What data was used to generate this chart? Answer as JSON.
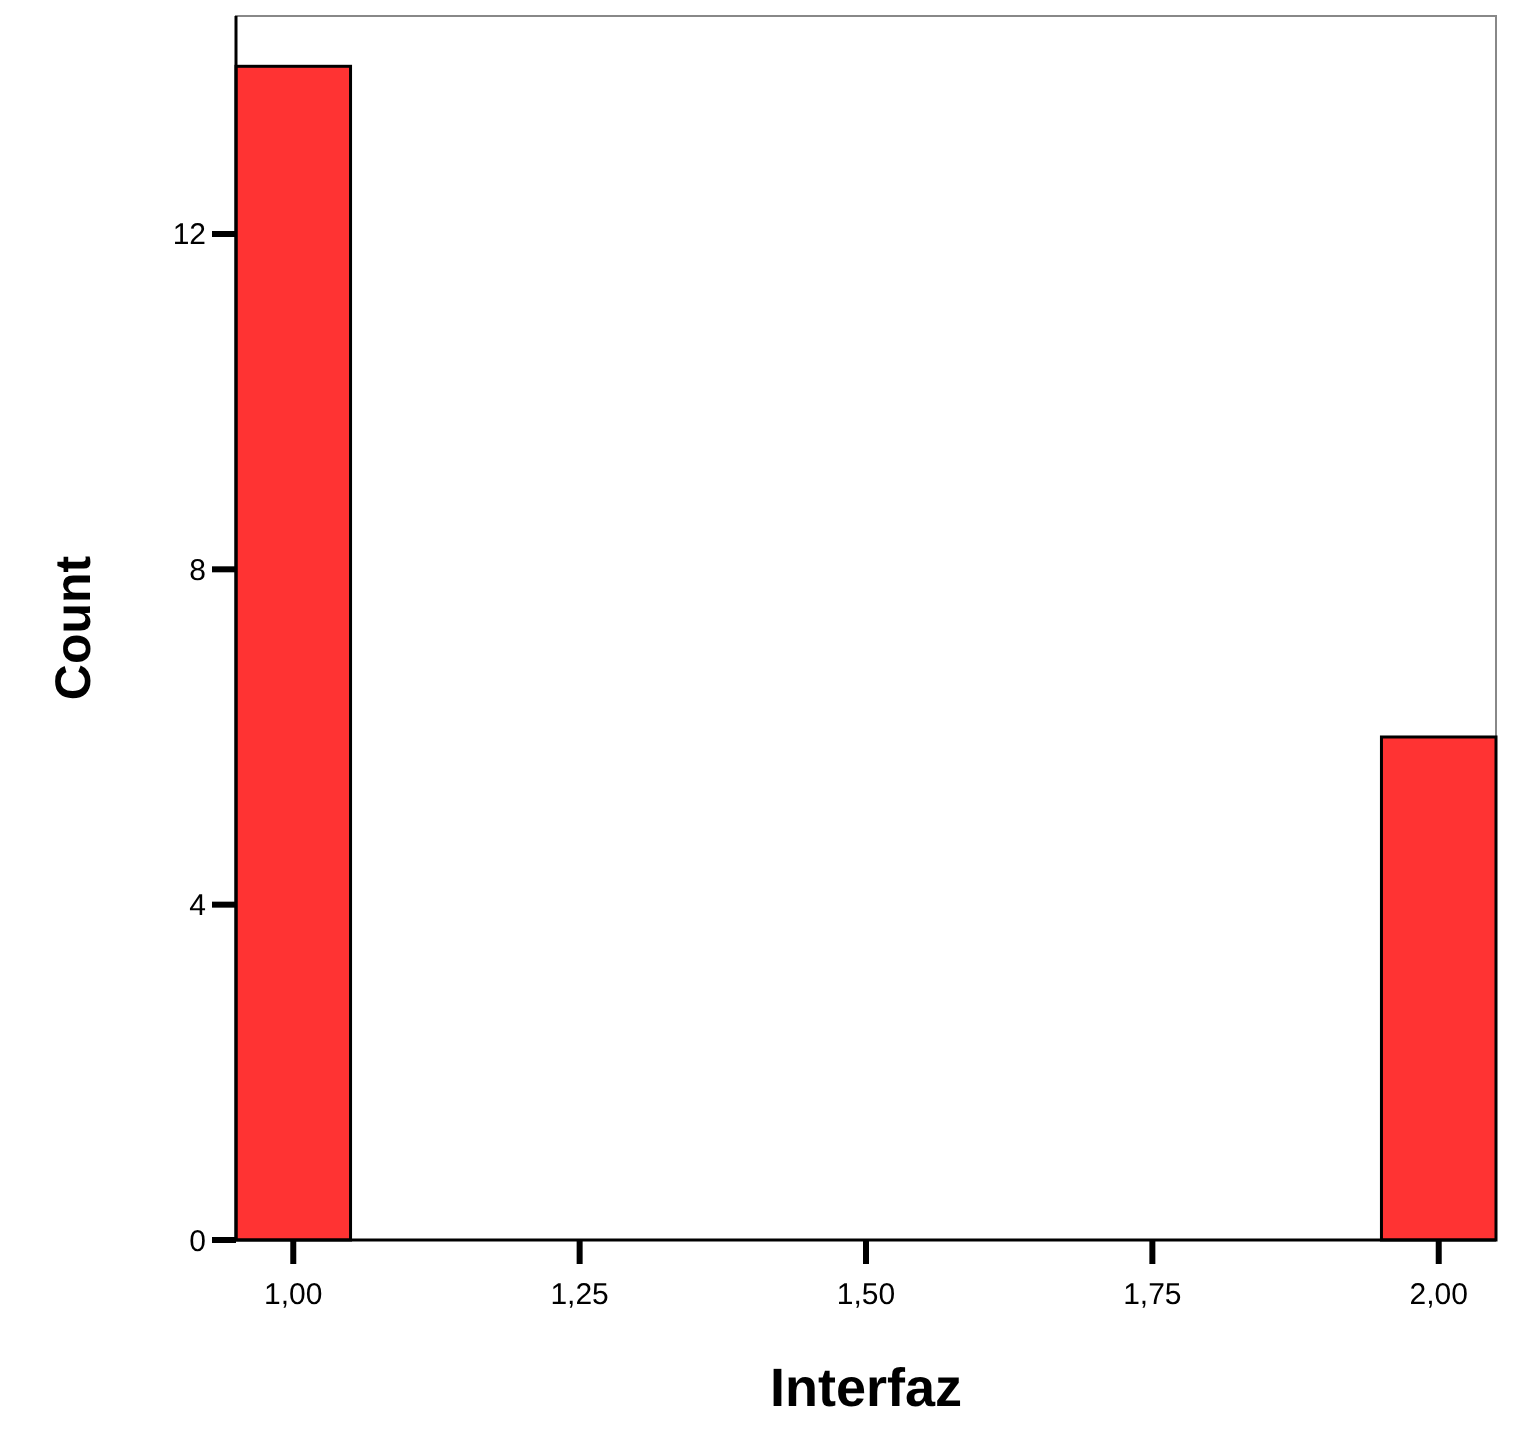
{
  "chart_data": {
    "type": "histogram",
    "xlabel": "Interfaz",
    "ylabel": "Count",
    "bins": [
      0.95,
      1.05,
      1.15,
      1.25,
      1.35,
      1.45,
      1.55,
      1.65,
      1.75,
      1.85,
      1.95,
      2.05
    ],
    "values": [
      14,
      0,
      0,
      0,
      0,
      0,
      0,
      0,
      0,
      0,
      6
    ],
    "color": "#ff3333",
    "xlim": [
      0.95,
      2.05
    ],
    "xticks": [
      {
        "value": 1,
        "label": "1,00"
      },
      {
        "value": 1.25,
        "label": "1,25"
      },
      {
        "value": 1.5,
        "label": "1,50"
      },
      {
        "value": 1.75,
        "label": "1,75"
      },
      {
        "value": 2,
        "label": "2,00"
      }
    ],
    "ylim": [
      0,
      14.6
    ],
    "yticks": [
      0,
      4,
      8,
      12
    ],
    "grid": false
  }
}
